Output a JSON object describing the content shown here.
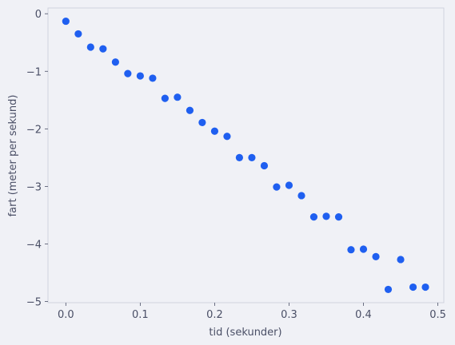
{
  "chart_data": {
    "type": "scatter",
    "title": "",
    "xlabel": "tid (sekunder)",
    "ylabel": "fart (meter per sekund)",
    "xlim": [
      -0.024,
      0.508
    ],
    "ylim": [
      -5.02,
      0.1
    ],
    "grid": false,
    "point_color": "#1f5ff0",
    "axis_color": "#d0d3de",
    "x_ticks": [
      {
        "value": 0.0,
        "label": "0.0"
      },
      {
        "value": 0.1,
        "label": "0.1"
      },
      {
        "value": 0.2,
        "label": "0.2"
      },
      {
        "value": 0.3,
        "label": "0.3"
      },
      {
        "value": 0.4,
        "label": "0.4"
      },
      {
        "value": 0.5,
        "label": "0.5"
      }
    ],
    "y_ticks": [
      {
        "value": 0,
        "label": "0"
      },
      {
        "value": -1,
        "label": "−1"
      },
      {
        "value": -2,
        "label": "−2"
      },
      {
        "value": -3,
        "label": "−3"
      },
      {
        "value": -4,
        "label": "−4"
      },
      {
        "value": -5,
        "label": "−5"
      }
    ],
    "series": [
      {
        "x": [
          0.0,
          0.0167,
          0.0333,
          0.05,
          0.0667,
          0.0833,
          0.1,
          0.1167,
          0.1333,
          0.15,
          0.1667,
          0.1833,
          0.2,
          0.2167,
          0.2333,
          0.25,
          0.2667,
          0.2833,
          0.3,
          0.3167,
          0.3333,
          0.35,
          0.3667,
          0.3833,
          0.4,
          0.4167,
          0.4333,
          0.45,
          0.4667,
          0.4833
        ],
        "y": [
          -0.13,
          -0.35,
          -0.58,
          -0.61,
          -0.84,
          -1.04,
          -1.08,
          -1.12,
          -1.47,
          -1.45,
          -1.68,
          -1.89,
          -2.04,
          -2.13,
          -2.5,
          -2.5,
          -2.64,
          -3.01,
          -2.98,
          -3.16,
          -3.53,
          -3.52,
          -3.53,
          -4.1,
          -4.09,
          -4.22,
          -4.79,
          -4.27,
          -4.75,
          -4.75
        ]
      }
    ]
  }
}
